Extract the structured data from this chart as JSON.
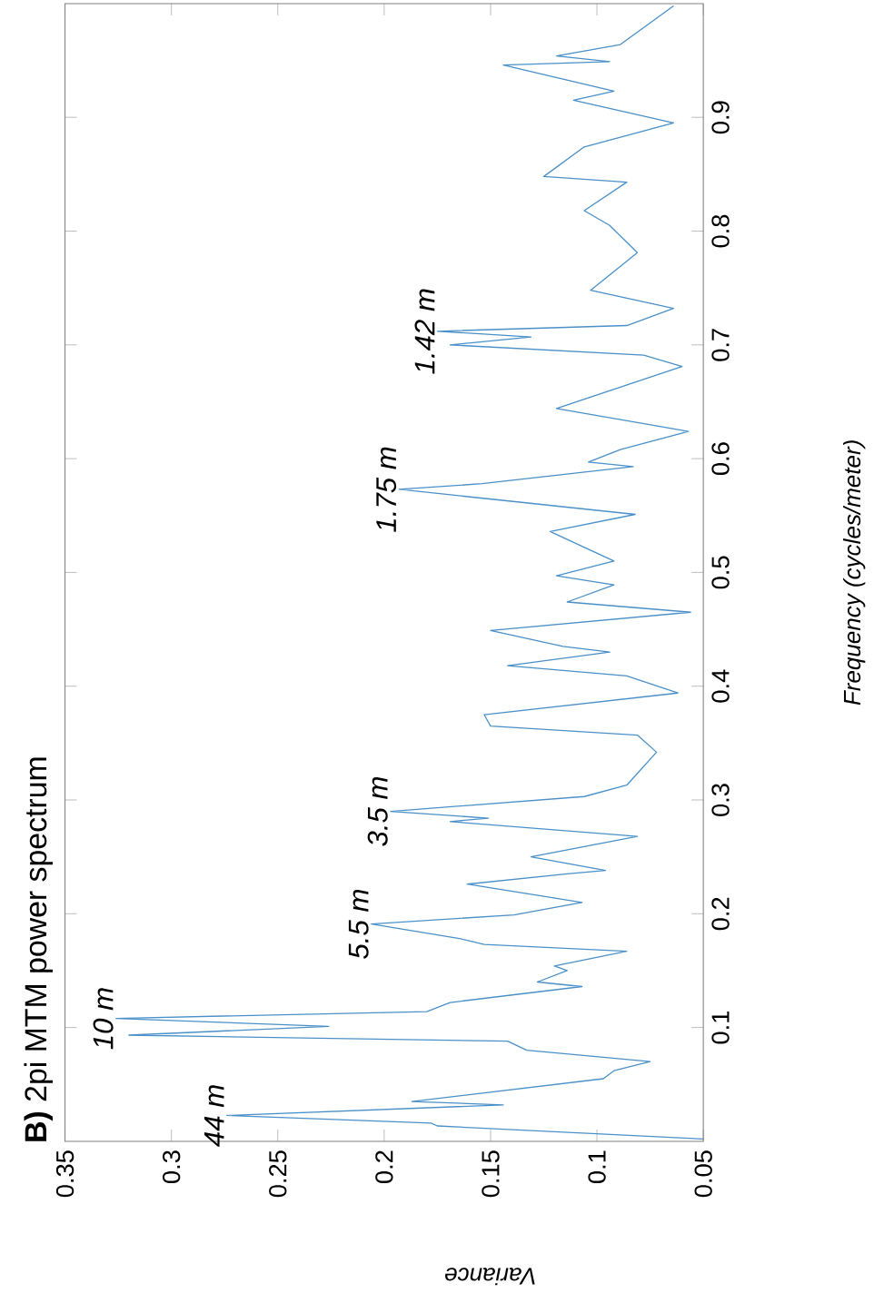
{
  "chart_data": {
    "type": "line",
    "title": "**B)** 2pi MTM power spectrum",
    "xlabel": "Variance",
    "ylabel": "Frequency (cycles/meter)",
    "color": "#4a90c8",
    "x": [
      0.05,
      0.175,
      0.178,
      0.274,
      0.144,
      0.187,
      0.097,
      0.092,
      0.075,
      0.133,
      0.142,
      0.32,
      0.226,
      0.326,
      0.18,
      0.169,
      0.107,
      0.128,
      0.114,
      0.12,
      0.086,
      0.153,
      0.164,
      0.206,
      0.139,
      0.107,
      0.161,
      0.114,
      0.096,
      0.131,
      0.081,
      0.169,
      0.151,
      0.197,
      0.106,
      0.086,
      0.072,
      0.081,
      0.15,
      0.153,
      0.062,
      0.086,
      0.142,
      0.094,
      0.116,
      0.15,
      0.056,
      0.114,
      0.092,
      0.119,
      0.092,
      0.122,
      0.082,
      0.193,
      0.154,
      0.083,
      0.104,
      0.089,
      0.057,
      0.119,
      0.06,
      0.078,
      0.169,
      0.131,
      0.175,
      0.086,
      0.064,
      0.103,
      0.081,
      0.094,
      0.106,
      0.086,
      0.125,
      0.106,
      0.064,
      0.111,
      0.092,
      0.144,
      0.094,
      0.119,
      0.089,
      0.064
    ],
    "values": [
      0.002,
      0.0135,
      0.016,
      0.0227,
      0.032,
      0.035,
      0.055,
      0.062,
      0.07,
      0.08,
      0.088,
      0.0933,
      0.101,
      0.108,
      0.114,
      0.122,
      0.136,
      0.14,
      0.15,
      0.154,
      0.167,
      0.173,
      0.178,
      0.191,
      0.199,
      0.21,
      0.226,
      0.235,
      0.238,
      0.25,
      0.268,
      0.281,
      0.284,
      0.29,
      0.303,
      0.313,
      0.342,
      0.357,
      0.365,
      0.375,
      0.394,
      0.409,
      0.418,
      0.43,
      0.435,
      0.449,
      0.465,
      0.474,
      0.489,
      0.497,
      0.51,
      0.536,
      0.551,
      0.573,
      0.578,
      0.593,
      0.597,
      0.608,
      0.624,
      0.644,
      0.681,
      0.691,
      0.7,
      0.707,
      0.712,
      0.717,
      0.732,
      0.748,
      0.781,
      0.805,
      0.818,
      0.843,
      0.848,
      0.874,
      0.895,
      0.915,
      0.923,
      0.946,
      0.949,
      0.954,
      0.964,
      0.998
    ],
    "xlim": [
      0.35,
      0.05
    ],
    "ylim": [
      0,
      1
    ],
    "xticks": [
      0.35,
      0.3,
      0.25,
      0.2,
      0.15,
      0.1,
      0.05
    ],
    "yticks": [
      0.1,
      0.2,
      0.3,
      0.4,
      0.5,
      0.6,
      0.7,
      0.8,
      0.9
    ],
    "annotations": [
      {
        "text": "44 m",
        "x": 0.274,
        "y": 0.0227
      },
      {
        "text": "10 m",
        "x": 0.326,
        "y": 0.108
      },
      {
        "text": "5.5 m",
        "x": 0.206,
        "y": 0.191
      },
      {
        "text": "3.5 m",
        "x": 0.197,
        "y": 0.29
      },
      {
        "text": "1.75 m",
        "x": 0.193,
        "y": 0.573
      },
      {
        "text": "1.42 m",
        "x": 0.175,
        "y": 0.712
      }
    ]
  }
}
